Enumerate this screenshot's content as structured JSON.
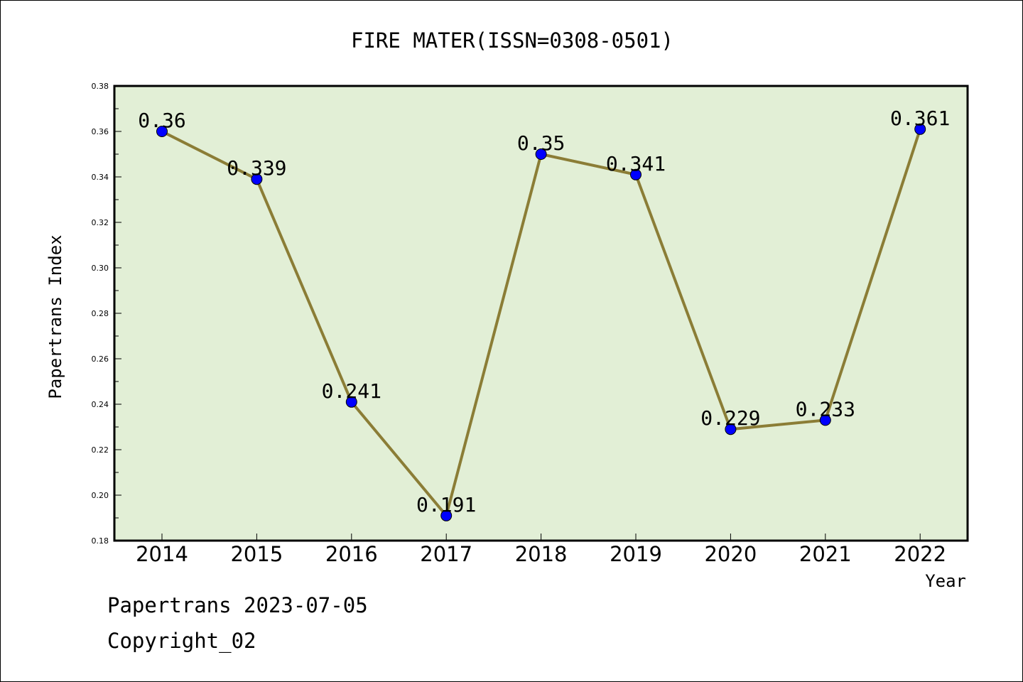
{
  "chart_data": {
    "type": "line",
    "title": "FIRE MATER(ISSN=0308-0501)",
    "xlabel": "Year",
    "ylabel": "Papertrans Index",
    "categories": [
      "2014",
      "2015",
      "2016",
      "2017",
      "2018",
      "2019",
      "2020",
      "2021",
      "2022"
    ],
    "series": [
      {
        "values": [
          0.36,
          0.339,
          0.241,
          0.191,
          0.35,
          0.341,
          0.229,
          0.233,
          0.361
        ]
      }
    ],
    "data_labels": [
      "0.36",
      "0.339",
      "0.241",
      "0.191",
      "0.35",
      "0.341",
      "0.229",
      "0.233",
      "0.361"
    ],
    "ylim": [
      0.18,
      0.38
    ],
    "yticks": [
      "0.18",
      "0.20",
      "0.22",
      "0.24",
      "0.26",
      "0.28",
      "0.30",
      "0.32",
      "0.34",
      "0.36",
      "0.38"
    ],
    "grid": false,
    "legend": "none",
    "colors": {
      "plot_background": "#e2efd6",
      "line": "#8b7d36",
      "marker": "#0000ff"
    }
  },
  "footer": {
    "date_line": "Papertrans 2023-07-05",
    "copyright": "Copyright_02"
  }
}
